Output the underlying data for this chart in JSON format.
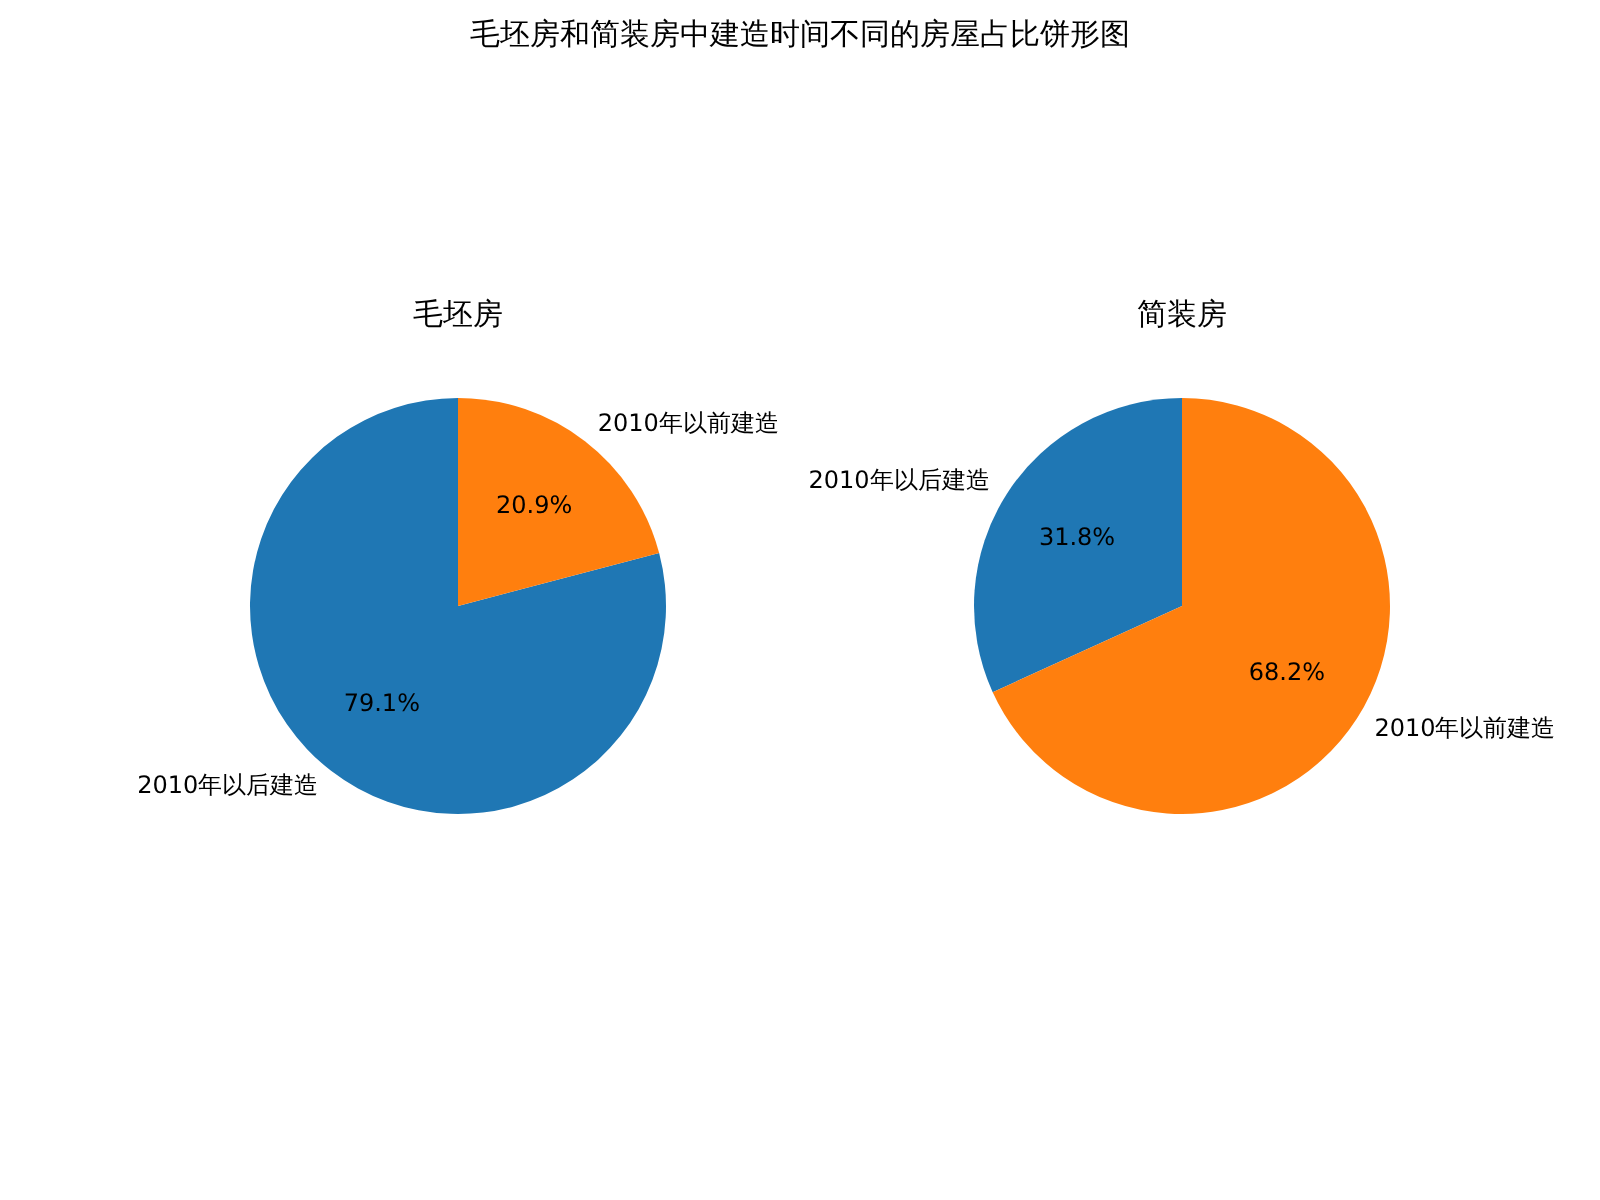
{
  "chart_data": [
    {
      "type": "pie",
      "title": "毛坯房",
      "annotations": [
        "毛坯房和简装房中建造时间不同的房屋占比饼形图"
      ],
      "categories": [
        "2010年以后建造",
        "2010年以前建造"
      ],
      "values": [
        79.1,
        20.9
      ],
      "colors": [
        "#1f77b4",
        "#ff7f0e"
      ],
      "value_labels": [
        "79.1%",
        "20.9%"
      ]
    },
    {
      "type": "pie",
      "title": "简装房",
      "categories": [
        "2010年以后建造",
        "2010年以前建造"
      ],
      "values": [
        31.8,
        68.2
      ],
      "colors": [
        "#1f77b4",
        "#ff7f0e"
      ],
      "value_labels": [
        "31.8%",
        "68.2%"
      ]
    }
  ]
}
